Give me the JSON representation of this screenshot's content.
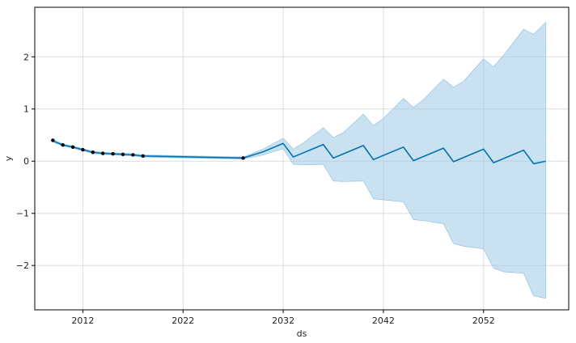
{
  "chart_data": {
    "type": "line",
    "title": "",
    "xlabel": "ds",
    "ylabel": "y",
    "x_ticks": [
      "2012",
      "2022",
      "2032",
      "2042",
      "2052"
    ],
    "x_tick_values": [
      2012,
      2022,
      2032,
      2042,
      2052
    ],
    "y_ticks": [
      "−2",
      "−1",
      "0",
      "1",
      "2"
    ],
    "y_tick_values": [
      -2,
      -1,
      0,
      1,
      2
    ],
    "xlim": [
      2007.2,
      2060.5
    ],
    "ylim": [
      -2.85,
      2.95
    ],
    "grid": true,
    "colors": {
      "forecast_line": "#0072B2",
      "uncertainty_band": "#9cc9e4",
      "observed_points": "#000000",
      "grid": "#dddddd",
      "frame": "#000000"
    },
    "observed": {
      "x": [
        2009,
        2010,
        2011,
        2012,
        2013,
        2014,
        2015,
        2016,
        2017,
        2018,
        2028
      ],
      "y": [
        0.4,
        0.31,
        0.27,
        0.22,
        0.17,
        0.15,
        0.14,
        0.13,
        0.12,
        0.1,
        0.06
      ]
    },
    "forecast": {
      "x": [
        2009,
        2010,
        2011,
        2012,
        2013,
        2014,
        2015,
        2016,
        2017,
        2018,
        2028,
        2030,
        2032,
        2033,
        2036,
        2037,
        2040,
        2041,
        2044,
        2045,
        2048,
        2049,
        2052,
        2053,
        2056,
        2057,
        2058.2
      ],
      "y": [
        0.39,
        0.31,
        0.27,
        0.22,
        0.17,
        0.15,
        0.14,
        0.13,
        0.12,
        0.1,
        0.06,
        0.18,
        0.34,
        0.08,
        0.32,
        0.06,
        0.3,
        0.03,
        0.27,
        0.01,
        0.25,
        -0.01,
        0.23,
        -0.03,
        0.21,
        -0.05,
        0.0
      ]
    },
    "band": {
      "x": [
        2009,
        2010,
        2011,
        2012,
        2013,
        2014,
        2015,
        2016,
        2017,
        2018,
        2028,
        2030,
        2032,
        2033,
        2034,
        2036,
        2037,
        2038,
        2040,
        2041,
        2042,
        2044,
        2045,
        2046,
        2048,
        2049,
        2050,
        2052,
        2053,
        2054,
        2056,
        2057,
        2058.2
      ],
      "upper": [
        0.42,
        0.33,
        0.29,
        0.24,
        0.19,
        0.17,
        0.16,
        0.15,
        0.14,
        0.12,
        0.08,
        0.23,
        0.44,
        0.23,
        0.35,
        0.64,
        0.45,
        0.55,
        0.9,
        0.68,
        0.82,
        1.2,
        1.03,
        1.18,
        1.57,
        1.42,
        1.53,
        1.96,
        1.81,
        2.03,
        2.53,
        2.43,
        2.66
      ],
      "lower": [
        0.37,
        0.29,
        0.25,
        0.2,
        0.15,
        0.13,
        0.12,
        0.11,
        0.1,
        0.08,
        0.04,
        0.12,
        0.24,
        -0.06,
        -0.07,
        -0.06,
        -0.38,
        -0.39,
        -0.38,
        -0.72,
        -0.74,
        -0.78,
        -1.12,
        -1.14,
        -1.2,
        -1.58,
        -1.63,
        -1.68,
        -2.05,
        -2.12,
        -2.15,
        -2.58,
        -2.63
      ]
    }
  }
}
